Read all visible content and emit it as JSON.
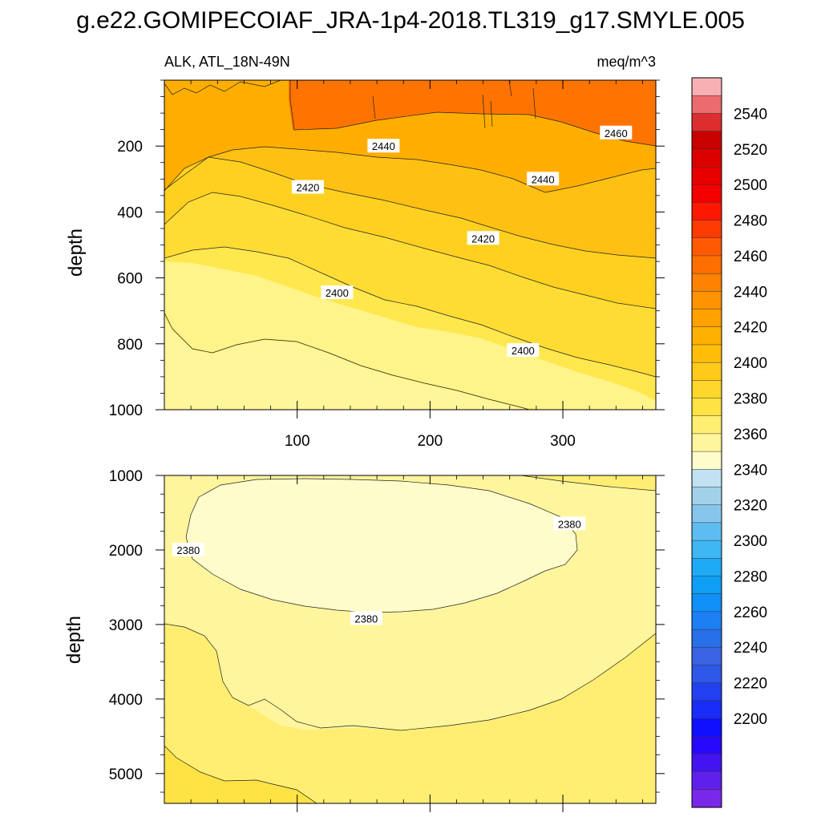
{
  "figure_title": "g.e22.GOMIPECOIAF_JRA-1p4-2018.TL319_g17.SMYLE.005",
  "chart_data": [
    {
      "type": "contour",
      "panel": "upper",
      "title_left": "ALK, ATL_18N-49N",
      "title_right": "meq/m^3",
      "xlabel": "",
      "ylabel": "depth",
      "xlim": [
        0,
        370
      ],
      "ylim": [
        0,
        1000
      ],
      "y_inverted": true,
      "xticks": [
        100,
        200,
        300
      ],
      "yticks": [
        200,
        400,
        600,
        800,
        1000
      ],
      "contour_labels": [
        {
          "text": "2460",
          "x": 340,
          "y": 160
        },
        {
          "text": "2440",
          "x": 165,
          "y": 200
        },
        {
          "text": "2440",
          "x": 285,
          "y": 300
        },
        {
          "text": "2420",
          "x": 108,
          "y": 325
        },
        {
          "text": "2420",
          "x": 240,
          "y": 480
        },
        {
          "text": "2400",
          "x": 130,
          "y": 645
        },
        {
          "text": "2400",
          "x": 270,
          "y": 820
        }
      ]
    },
    {
      "type": "contour",
      "panel": "lower",
      "xlabel": "",
      "ylabel": "depth",
      "xlim": [
        0,
        370
      ],
      "ylim": [
        1000,
        5400
      ],
      "y_inverted": true,
      "xticks": [
        100,
        200,
        300
      ],
      "yticks": [
        1000,
        2000,
        3000,
        4000,
        5000
      ],
      "contour_labels": [
        {
          "text": "2380",
          "x": 18,
          "y": 2000
        },
        {
          "text": "2380",
          "x": 152,
          "y": 2920
        },
        {
          "text": "2380",
          "x": 305,
          "y": 1650
        }
      ]
    }
  ],
  "colorbar": {
    "labels": [
      "2540",
      "2520",
      "2500",
      "2480",
      "2460",
      "2440",
      "2420",
      "2400",
      "2380",
      "2360",
      "2340",
      "2320",
      "2300",
      "2280",
      "2260",
      "2240",
      "2220",
      "2200"
    ],
    "colors": [
      "#f9b0b4",
      "#ec6b6e",
      "#dc2e2e",
      "#c80000",
      "#dc0000",
      "#e80000",
      "#f50000",
      "#ff1800",
      "#ff3a00",
      "#ff5a00",
      "#ff6e00",
      "#ff8200",
      "#ff9400",
      "#ffa200",
      "#ffb000",
      "#ffbe0a",
      "#ffca1a",
      "#ffd62a",
      "#ffe344",
      "#ffee72",
      "#fff59c",
      "#fffccb",
      "#c0e2f2",
      "#a2d2ea",
      "#86c6ec",
      "#5ebdf0",
      "#3eb7f4",
      "#1eaaf4",
      "#0e9ef4",
      "#1090f8",
      "#1c80f4",
      "#2870e8",
      "#3a64e4",
      "#2e58e8",
      "#2240f0",
      "#1a2cf8",
      "#1010ff",
      "#2808fc",
      "#4414f0",
      "#6020ec",
      "#7a28e8"
    ]
  },
  "colors": {
    "fill_2380": "#fffccb",
    "fill_2390": "#fff59c",
    "fill_2400": "#ffee72",
    "fill_2410": "#ffe344",
    "fill_2420": "#ffd62a",
    "fill_2430": "#ffc314",
    "fill_2440": "#ffb000",
    "fill_2450": "#ff9e00",
    "fill_2460": "#ff8a00",
    "fill_2470": "#ff6e00"
  }
}
